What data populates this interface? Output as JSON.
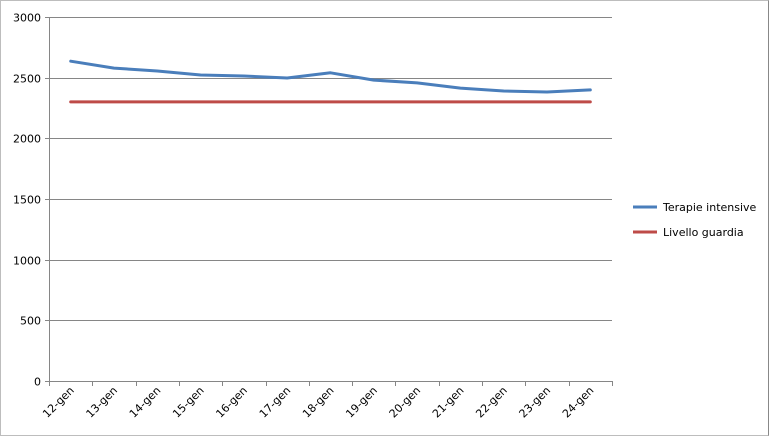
{
  "chart_data": {
    "type": "line",
    "title": "",
    "xlabel": "",
    "ylabel": "",
    "categories": [
      "12-gen",
      "13-gen",
      "14-gen",
      "15-gen",
      "16-gen",
      "17-gen",
      "18-gen",
      "19-gen",
      "20-gen",
      "21-gen",
      "22-gen",
      "23-gen",
      "24-gen"
    ],
    "ylim": [
      0,
      3000
    ],
    "yticks": [
      0,
      500,
      1000,
      1500,
      2000,
      2500,
      3000
    ],
    "grid": true,
    "legend_position": "right",
    "series": [
      {
        "name": "Terapie intensive",
        "color": "#4a7ebb",
        "values": [
          2636,
          2579,
          2555,
          2522,
          2514,
          2497,
          2540,
          2480,
          2457,
          2414,
          2390,
          2382,
          2399
        ]
      },
      {
        "name": "Livello guardia",
        "color": "#be4b48",
        "values": [
          2300,
          2300,
          2300,
          2300,
          2300,
          2300,
          2300,
          2300,
          2300,
          2300,
          2300,
          2300,
          2300
        ]
      }
    ]
  }
}
